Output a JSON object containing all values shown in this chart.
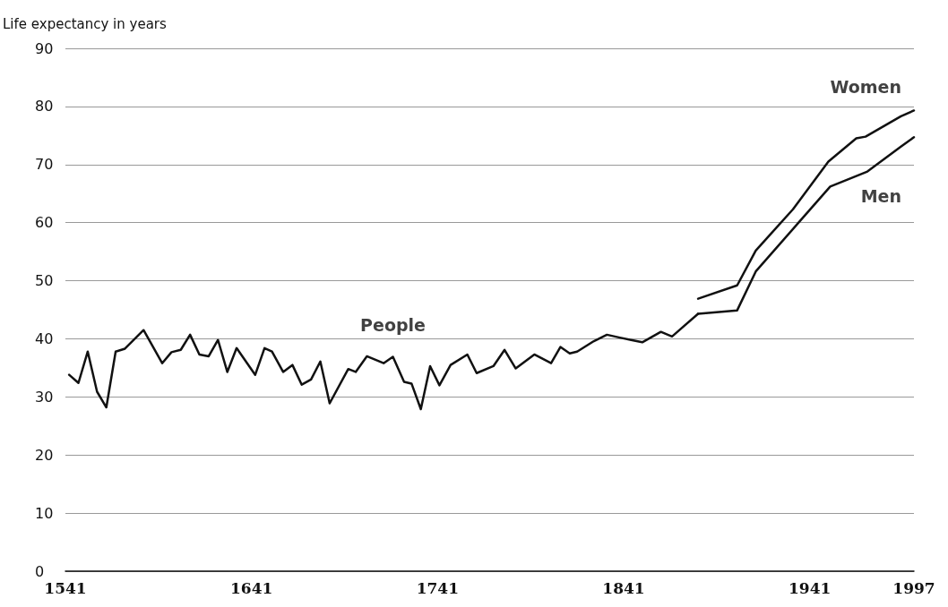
{
  "chart_data": {
    "type": "line",
    "ylabel": "Life expectancy in years",
    "xlim": [
      1541,
      1997
    ],
    "xticks": [
      1541,
      1641,
      1741,
      1841,
      1941,
      1997
    ],
    "ylim": [
      0,
      90
    ],
    "yticks": [
      0,
      10,
      20,
      30,
      40,
      50,
      60,
      70,
      80,
      90
    ],
    "grid": "y",
    "marker": "none",
    "line_style": "solid",
    "series": [
      {
        "name": "People",
        "color": "#111111",
        "x": [
          1543,
          1548,
          1553,
          1558,
          1563,
          1568,
          1573,
          1583,
          1593,
          1598,
          1603,
          1608,
          1613,
          1618,
          1623,
          1628,
          1633,
          1643,
          1648,
          1652,
          1658,
          1663,
          1668,
          1673,
          1678,
          1683,
          1693,
          1697,
          1703,
          1712,
          1717,
          1723,
          1727,
          1732,
          1737,
          1742,
          1748,
          1757,
          1762,
          1771,
          1777,
          1783,
          1793,
          1802,
          1807,
          1812,
          1816,
          1825,
          1832,
          1839,
          1845,
          1851,
          1861,
          1867,
          1881
        ],
        "values": [
          33.8,
          32.4,
          37.8,
          30.9,
          28.2,
          37.8,
          38.3,
          41.5,
          35.8,
          37.7,
          38.1,
          40.7,
          37.3,
          37.0,
          39.8,
          34.3,
          38.4,
          33.8,
          38.4,
          37.8,
          34.3,
          35.5,
          32.1,
          33.0,
          36.1,
          28.9,
          34.8,
          34.3,
          37.0,
          35.8,
          36.9,
          32.6,
          32.3,
          27.9,
          35.3,
          32.0,
          35.5,
          37.3,
          34.1,
          35.3,
          38.1,
          34.9,
          37.3,
          35.8,
          38.6,
          37.5,
          37.8,
          39.6,
          40.7,
          40.2,
          39.8,
          39.4,
          41.2,
          40.4,
          44.3
        ]
      },
      {
        "name": "Women",
        "color": "#111111",
        "x": [
          1881,
          1902,
          1912,
          1932,
          1951,
          1966,
          1971,
          1990,
          1997
        ],
        "values": [
          46.9,
          49.2,
          55.2,
          62.3,
          70.5,
          74.5,
          74.8,
          78.3,
          79.3
        ]
      },
      {
        "name": "Men",
        "color": "#111111",
        "x": [
          1881,
          1902,
          1912,
          1935,
          1952,
          1972,
          1990,
          1997
        ],
        "values": [
          44.3,
          44.9,
          51.6,
          60.0,
          66.2,
          68.8,
          73.1,
          74.7
        ]
      }
    ]
  }
}
